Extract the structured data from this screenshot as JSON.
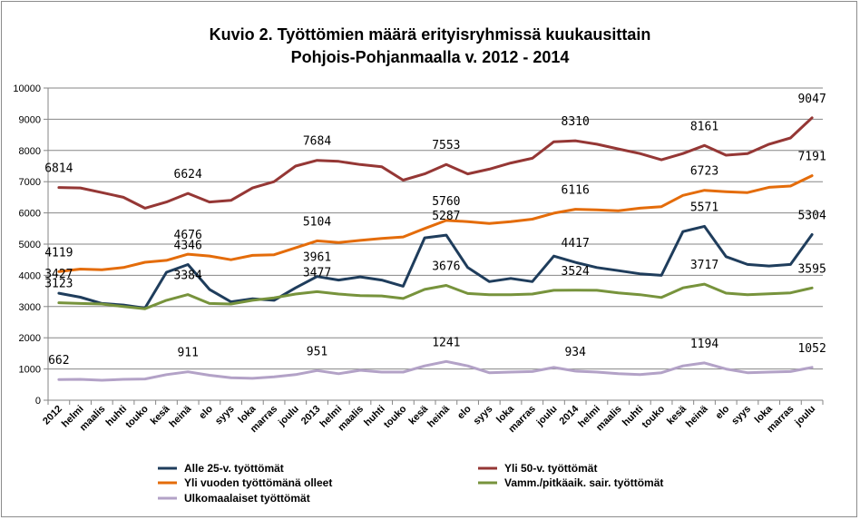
{
  "title_line1": "Kuvio 2.  Työttömien määrä erityisryhmissä kuukausittain",
  "title_line2": "Pohjois-Pohjanmaalla v. 2012 - 2014",
  "chart_data": {
    "type": "line",
    "title": "Kuvio 2.  Työttömien määrä erityisryhmissä kuukausittain Pohjois-Pohjanmaalla v. 2012 - 2014",
    "xlabel": "",
    "ylabel": "",
    "ylim": [
      0,
      10000
    ],
    "yticks": [
      0,
      1000,
      2000,
      3000,
      4000,
      5000,
      6000,
      7000,
      8000,
      9000,
      10000
    ],
    "grid": true,
    "legend_position": "bottom",
    "categories": [
      "2012",
      "helmi",
      "maalis",
      "huhti",
      "touko",
      "kesä",
      "heinä",
      "elo",
      "syys",
      "loka",
      "marras",
      "joulu",
      "2013",
      "helmi",
      "maalis",
      "huhti",
      "touko",
      "kesä",
      "heinä",
      "elo",
      "syys",
      "loka",
      "marras",
      "joulu",
      "2014",
      "helmi",
      "maalis",
      "huhti",
      "touko",
      "kesä",
      "heinä",
      "elo",
      "syys",
      "loka",
      "marras",
      "joulu"
    ],
    "series": [
      {
        "name": "Alle 25-v.  työttömät",
        "color": "#1f3d5c",
        "values": [
          3427,
          3300,
          3100,
          3050,
          2950,
          4100,
          4346,
          3550,
          3150,
          3250,
          3200,
          3600,
          3961,
          3850,
          3950,
          3850,
          3650,
          5200,
          5287,
          4250,
          3800,
          3900,
          3800,
          4617,
          4417,
          4250,
          4150,
          4050,
          4000,
          5400,
          5571,
          4600,
          4350,
          4300,
          4350,
          5304
        ],
        "labels": [
          {
            "index": 0,
            "text": "3427"
          },
          {
            "index": 6,
            "text": "4346"
          },
          {
            "index": 12,
            "text": "3961"
          },
          {
            "index": 18,
            "text": "5287"
          },
          {
            "index": 24,
            "text": "4417"
          },
          {
            "index": 30,
            "text": "5571"
          },
          {
            "index": 35,
            "text": "5304"
          }
        ]
      },
      {
        "name": "Yli 50-v.  työttömät",
        "color": "#953735",
        "values": [
          6814,
          6800,
          6650,
          6500,
          6150,
          6350,
          6624,
          6350,
          6400,
          6800,
          7000,
          7500,
          7684,
          7650,
          7550,
          7480,
          7050,
          7250,
          7553,
          7250,
          7400,
          7600,
          7750,
          8280,
          8310,
          8200,
          8050,
          7900,
          7700,
          7900,
          8161,
          7850,
          7900,
          8200,
          8400,
          9047
        ],
        "labels": [
          {
            "index": 0,
            "text": "6814"
          },
          {
            "index": 6,
            "text": "6624"
          },
          {
            "index": 12,
            "text": "7684"
          },
          {
            "index": 18,
            "text": "7553"
          },
          {
            "index": 24,
            "text": "8310"
          },
          {
            "index": 30,
            "text": "8161"
          },
          {
            "index": 35,
            "text": "9047"
          }
        ]
      },
      {
        "name": "Yli vuoden työttömänä  olleet",
        "color": "#e46c0a",
        "values": [
          4119,
          4200,
          4180,
          4250,
          4420,
          4480,
          4676,
          4620,
          4500,
          4640,
          4660,
          4880,
          5104,
          5050,
          5120,
          5180,
          5230,
          5500,
          5760,
          5720,
          5660,
          5720,
          5800,
          5990,
          6116,
          6100,
          6070,
          6150,
          6200,
          6560,
          6723,
          6680,
          6650,
          6820,
          6860,
          7191
        ],
        "labels": [
          {
            "index": 0,
            "text": "4119"
          },
          {
            "index": 6,
            "text": "4676"
          },
          {
            "index": 12,
            "text": "5104"
          },
          {
            "index": 18,
            "text": "5760"
          },
          {
            "index": 24,
            "text": "6116"
          },
          {
            "index": 30,
            "text": "6723"
          },
          {
            "index": 35,
            "text": "7191"
          }
        ]
      },
      {
        "name": "Vamm./pitkäaik.  sair. työttömät",
        "color": "#77933c",
        "values": [
          3123,
          3100,
          3080,
          3000,
          2930,
          3200,
          3384,
          3100,
          3080,
          3200,
          3280,
          3400,
          3477,
          3400,
          3350,
          3340,
          3260,
          3550,
          3676,
          3420,
          3380,
          3380,
          3400,
          3520,
          3524,
          3520,
          3440,
          3380,
          3290,
          3600,
          3717,
          3430,
          3380,
          3410,
          3440,
          3595
        ],
        "labels": [
          {
            "index": 0,
            "text": "3123"
          },
          {
            "index": 6,
            "text": "3384"
          },
          {
            "index": 12,
            "text": "3477"
          },
          {
            "index": 18,
            "text": "3676"
          },
          {
            "index": 24,
            "text": "3524"
          },
          {
            "index": 30,
            "text": "3717"
          },
          {
            "index": 35,
            "text": "3595"
          }
        ]
      },
      {
        "name": "Ulkomaalaiset työttömät",
        "color": "#b3a2c7",
        "values": [
          662,
          670,
          640,
          670,
          680,
          820,
          911,
          800,
          720,
          700,
          750,
          820,
          951,
          850,
          960,
          900,
          900,
          1100,
          1241,
          1100,
          880,
          900,
          920,
          1050,
          934,
          900,
          850,
          820,
          880,
          1100,
          1194,
          1000,
          880,
          900,
          920,
          1052
        ],
        "labels": [
          {
            "index": 0,
            "text": "662"
          },
          {
            "index": 6,
            "text": "911"
          },
          {
            "index": 12,
            "text": "951"
          },
          {
            "index": 18,
            "text": "1241"
          },
          {
            "index": 24,
            "text": "934"
          },
          {
            "index": 30,
            "text": "1194"
          },
          {
            "index": 35,
            "text": "1052"
          }
        ]
      }
    ]
  }
}
